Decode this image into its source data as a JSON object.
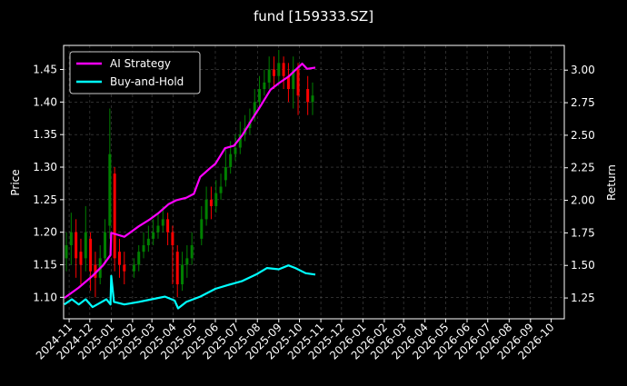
{
  "chart_data": {
    "type": "line",
    "title": "fund [159333.SZ]",
    "ylabel_left": "Price",
    "ylabel_right": "Return",
    "background": "#000000",
    "grid": true,
    "legend_position": "upper-left",
    "ylim_left": [
      1.067,
      1.487
    ],
    "ylim_right": [
      1.09,
      3.19
    ],
    "yticks_left": [
      "1.10",
      "1.15",
      "1.20",
      "1.25",
      "1.30",
      "1.35",
      "1.40",
      "1.45"
    ],
    "yticks_right": [
      "1.25",
      "1.50",
      "1.75",
      "2.00",
      "2.25",
      "2.50",
      "2.75",
      "3.00"
    ],
    "xticks": [
      "2024-11",
      "2024-12",
      "2025-01",
      "2025-02",
      "2025-03",
      "2025-04",
      "2025-05",
      "2025-06",
      "2025-07",
      "2025-08",
      "2025-09",
      "2025-10",
      "2025-11",
      "2025-12",
      "2026-01",
      "2026-02",
      "2026-03",
      "2026-04",
      "2026-05",
      "2026-06",
      "2026-07",
      "2026-08",
      "2026-09",
      "2026-10"
    ],
    "candle_colors": {
      "up": "#008000",
      "down": "#ff0000"
    },
    "candles": {
      "dates": [
        "2024-10-28",
        "2024-11-04",
        "2024-11-11",
        "2024-11-18",
        "2024-11-25",
        "2024-12-02",
        "2024-12-09",
        "2024-12-16",
        "2024-12-23",
        "2024-12-30",
        "2025-01-06",
        "2025-01-13",
        "2025-01-20",
        "2025-02-03",
        "2025-02-10",
        "2025-02-17",
        "2025-02-24",
        "2025-03-03",
        "2025-03-10",
        "2025-03-17",
        "2025-03-24",
        "2025-03-31",
        "2025-04-07",
        "2025-04-14",
        "2025-04-21",
        "2025-04-28",
        "2025-05-12",
        "2025-05-19",
        "2025-05-26",
        "2025-06-02",
        "2025-06-09",
        "2025-06-16",
        "2025-06-23",
        "2025-06-30",
        "2025-07-07",
        "2025-07-14",
        "2025-07-21",
        "2025-07-28",
        "2025-08-04",
        "2025-08-11",
        "2025-08-18",
        "2025-08-25",
        "2025-09-01",
        "2025-09-08",
        "2025-09-15",
        "2025-09-22",
        "2025-09-29",
        "2025-10-13",
        "2025-10-20"
      ],
      "close": [
        1.18,
        1.2,
        1.16,
        1.15,
        1.2,
        1.14,
        1.13,
        1.16,
        1.2,
        1.32,
        1.16,
        1.15,
        1.14,
        1.15,
        1.17,
        1.18,
        1.19,
        1.2,
        1.21,
        1.22,
        1.2,
        1.18,
        1.12,
        1.15,
        1.16,
        1.18,
        1.22,
        1.25,
        1.24,
        1.26,
        1.27,
        1.3,
        1.32,
        1.33,
        1.35,
        1.36,
        1.37,
        1.4,
        1.42,
        1.43,
        1.45,
        1.44,
        1.46,
        1.44,
        1.42,
        1.45,
        1.41,
        1.4,
        1.41
      ],
      "open": [
        1.16,
        1.18,
        1.2,
        1.17,
        1.16,
        1.19,
        1.15,
        1.13,
        1.16,
        1.21,
        1.29,
        1.17,
        1.15,
        1.14,
        1.15,
        1.17,
        1.18,
        1.19,
        1.2,
        1.21,
        1.22,
        1.2,
        1.17,
        1.12,
        1.15,
        1.16,
        1.19,
        1.22,
        1.25,
        1.24,
        1.26,
        1.28,
        1.3,
        1.32,
        1.33,
        1.35,
        1.36,
        1.38,
        1.4,
        1.42,
        1.43,
        1.45,
        1.44,
        1.46,
        1.44,
        1.42,
        1.45,
        1.42,
        1.4
      ],
      "high": [
        1.2,
        1.23,
        1.22,
        1.19,
        1.24,
        1.2,
        1.17,
        1.18,
        1.22,
        1.39,
        1.3,
        1.19,
        1.17,
        1.16,
        1.18,
        1.2,
        1.21,
        1.22,
        1.23,
        1.24,
        1.23,
        1.21,
        1.18,
        1.17,
        1.18,
        1.2,
        1.24,
        1.27,
        1.27,
        1.28,
        1.29,
        1.33,
        1.34,
        1.35,
        1.37,
        1.38,
        1.39,
        1.42,
        1.44,
        1.45,
        1.47,
        1.47,
        1.48,
        1.47,
        1.46,
        1.47,
        1.46,
        1.44,
        1.43
      ],
      "low": [
        1.14,
        1.15,
        1.13,
        1.12,
        1.14,
        1.11,
        1.1,
        1.12,
        1.15,
        1.19,
        1.14,
        1.13,
        1.12,
        1.13,
        1.14,
        1.16,
        1.17,
        1.18,
        1.19,
        1.2,
        1.18,
        1.12,
        1.1,
        1.11,
        1.13,
        1.15,
        1.18,
        1.21,
        1.22,
        1.23,
        1.25,
        1.27,
        1.29,
        1.31,
        1.32,
        1.34,
        1.35,
        1.37,
        1.39,
        1.41,
        1.42,
        1.42,
        1.43,
        1.42,
        1.4,
        1.39,
        1.38,
        1.38,
        1.38
      ]
    },
    "series": [
      {
        "name": "AI Strategy",
        "color": "#ff00ff",
        "axis": "right",
        "x": [
          "2024-10-25",
          "2024-11-15",
          "2024-12-05",
          "2024-12-20",
          "2024-12-31",
          "2025-01-01",
          "2025-01-20",
          "2025-02-10",
          "2025-02-25",
          "2025-03-10",
          "2025-03-25",
          "2025-04-05",
          "2025-04-20",
          "2025-05-01",
          "2025-05-10",
          "2025-05-25",
          "2025-06-01",
          "2025-06-15",
          "2025-06-28",
          "2025-07-10",
          "2025-07-25",
          "2025-08-05",
          "2025-08-20",
          "2025-09-01",
          "2025-09-15",
          "2025-09-25",
          "2025-10-05",
          "2025-10-12",
          "2025-10-24"
        ],
        "y": [
          1.25,
          1.33,
          1.42,
          1.5,
          1.58,
          1.75,
          1.72,
          1.8,
          1.85,
          1.9,
          1.97,
          2.0,
          2.02,
          2.05,
          2.18,
          2.25,
          2.28,
          2.4,
          2.42,
          2.5,
          2.63,
          2.72,
          2.85,
          2.9,
          2.95,
          3.0,
          3.05,
          3.01,
          3.02
        ]
      },
      {
        "name": "Buy-and-Hold",
        "color": "#00ffff",
        "axis": "right",
        "x": [
          "2024-10-25",
          "2024-11-05",
          "2024-11-15",
          "2024-11-25",
          "2024-12-05",
          "2024-12-15",
          "2024-12-25",
          "2024-12-31",
          "2025-01-01",
          "2025-01-05",
          "2025-01-20",
          "2025-02-10",
          "2025-03-01",
          "2025-03-20",
          "2025-04-03",
          "2025-04-08",
          "2025-04-20",
          "2025-05-10",
          "2025-06-01",
          "2025-06-20",
          "2025-07-10",
          "2025-07-30",
          "2025-08-15",
          "2025-09-01",
          "2025-09-15",
          "2025-09-25",
          "2025-10-10",
          "2025-10-24"
        ],
        "y": [
          1.2,
          1.24,
          1.2,
          1.24,
          1.18,
          1.21,
          1.24,
          1.2,
          1.42,
          1.22,
          1.2,
          1.22,
          1.24,
          1.26,
          1.23,
          1.17,
          1.22,
          1.26,
          1.32,
          1.35,
          1.38,
          1.43,
          1.48,
          1.47,
          1.5,
          1.48,
          1.44,
          1.43
        ]
      }
    ]
  }
}
